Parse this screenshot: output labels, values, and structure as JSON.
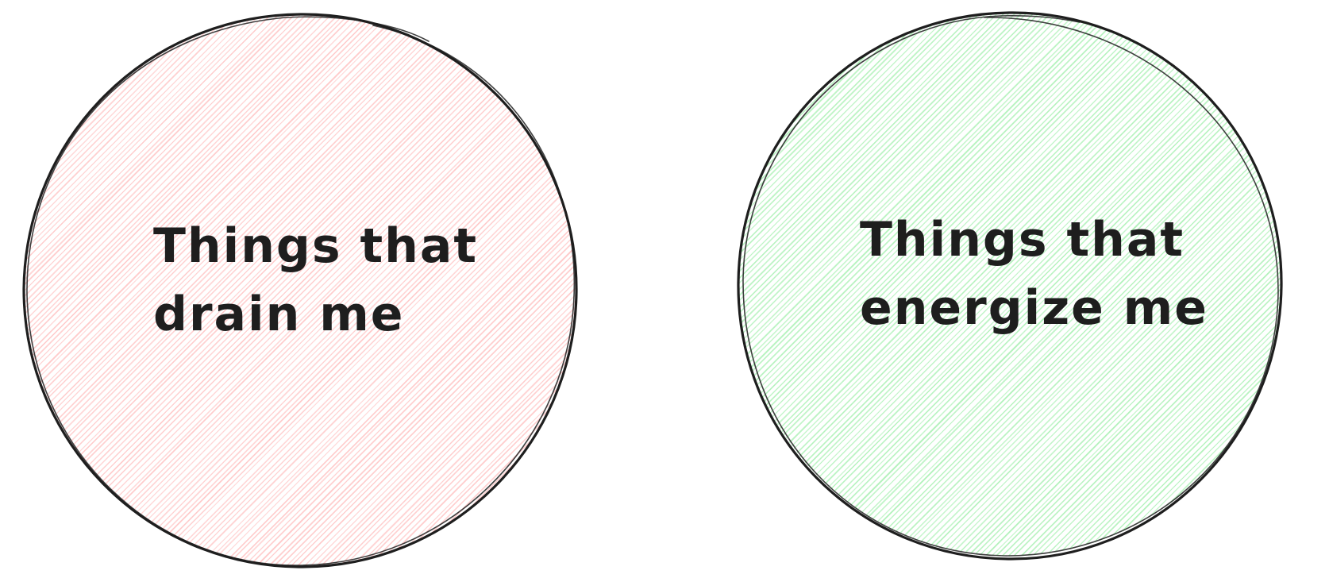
{
  "circles": [
    {
      "id": "drain",
      "line1": "Things that",
      "line2": "drain me",
      "hatch_color": "#ffc9c9"
    },
    {
      "id": "energize",
      "line1": "Things that",
      "line2": "energize me",
      "hatch_color": "#b2f2bb"
    }
  ],
  "stroke_color": "#1e1e1e",
  "background_color": "#ffffff"
}
